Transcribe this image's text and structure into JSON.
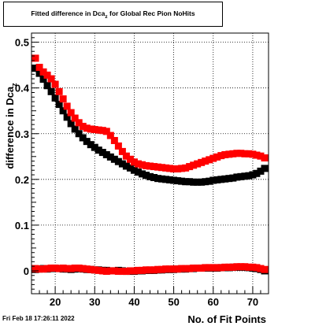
{
  "title": {
    "main": "Fitted difference in Dca",
    "sub": "z",
    "rest": " for Global Rec Pion NoHits"
  },
  "timestamp": "Fri Feb 18 17:26:11 2022",
  "chart_data": {
    "type": "scatter",
    "xlabel": "No. of Fit Points",
    "ylabel_main": "difference in Dca",
    "ylabel_sub": "z",
    "xlim": [
      14,
      74
    ],
    "ylim": [
      -0.05,
      0.52
    ],
    "grid": true,
    "x_ticks": [
      20,
      30,
      40,
      50,
      60,
      70
    ],
    "y_ticks": [
      0,
      0.1,
      0.2,
      0.3,
      0.4,
      0.5
    ],
    "x_tick_labels": [
      "20",
      "30",
      "40",
      "50",
      "60",
      "70"
    ],
    "y_tick_labels": [
      "0",
      "0.1",
      "0.2",
      "0.3",
      "0.4",
      "0.5"
    ],
    "x": [
      15,
      16,
      17,
      18,
      19,
      20,
      21,
      22,
      23,
      24,
      25,
      26,
      27,
      28,
      29,
      30,
      31,
      32,
      33,
      34,
      35,
      36,
      37,
      38,
      39,
      40,
      41,
      42,
      43,
      44,
      45,
      46,
      47,
      48,
      49,
      50,
      51,
      52,
      53,
      54,
      55,
      56,
      57,
      58,
      59,
      60,
      61,
      62,
      63,
      64,
      65,
      66,
      67,
      68,
      69,
      70,
      71,
      72,
      73
    ],
    "series": [
      {
        "color": "#000000",
        "values": [
          0.443,
          0.432,
          0.419,
          0.405,
          0.392,
          0.378,
          0.364,
          0.35,
          0.336,
          0.322,
          0.31,
          0.3,
          0.291,
          0.283,
          0.276,
          0.27,
          0.264,
          0.259,
          0.254,
          0.249,
          0.244,
          0.239,
          0.234,
          0.229,
          0.225,
          0.22,
          0.216,
          0.212,
          0.209,
          0.206,
          0.204,
          0.202,
          0.201,
          0.2,
          0.199,
          0.198,
          0.197,
          0.196,
          0.195,
          0.195,
          0.194,
          0.194,
          0.194,
          0.195,
          0.196,
          0.198,
          0.199,
          0.2,
          0.201,
          0.202,
          0.203,
          0.205,
          0.206,
          0.207,
          0.208,
          0.21,
          0.213,
          0.218,
          0.224
        ]
      },
      {
        "color": "#ff0000",
        "values": [
          0.465,
          0.445,
          0.435,
          0.428,
          0.42,
          0.408,
          0.392,
          0.376,
          0.36,
          0.346,
          0.334,
          0.324,
          0.316,
          0.312,
          0.31,
          0.309,
          0.308,
          0.307,
          0.305,
          0.296,
          0.285,
          0.273,
          0.261,
          0.251,
          0.244,
          0.238,
          0.234,
          0.232,
          0.23,
          0.229,
          0.228,
          0.227,
          0.226,
          0.225,
          0.224,
          0.223,
          0.223,
          0.224,
          0.225,
          0.228,
          0.231,
          0.234,
          0.237,
          0.24,
          0.243,
          0.246,
          0.249,
          0.252,
          0.254,
          0.255,
          0.256,
          0.257,
          0.257,
          0.256,
          0.256,
          0.255,
          0.253,
          0.251,
          0.247
        ]
      },
      {
        "color": "#000000",
        "values": [
          0.003,
          0.004,
          0.005,
          0.004,
          0.005,
          0.006,
          0.005,
          0.004,
          0.004,
          0.003,
          0.004,
          0.005,
          0.004,
          0.003,
          0.003,
          0.002,
          0.002,
          0.001,
          0.001,
          0.0,
          0.0,
          0.001,
          0.0,
          -0.001,
          -0.001,
          -0.001,
          0.0,
          0.0,
          0.001,
          0.001,
          0.001,
          0.002,
          0.002,
          0.003,
          0.003,
          0.003,
          0.004,
          0.004,
          0.004,
          0.005,
          0.005,
          0.006,
          0.006,
          0.006,
          0.006,
          0.006,
          0.006,
          0.007,
          0.007,
          0.007,
          0.008,
          0.008,
          0.008,
          0.008,
          0.007,
          0.006,
          0.005,
          0.003,
          0.0
        ]
      },
      {
        "color": "#ff0000",
        "values": [
          0.005,
          0.004,
          0.004,
          0.005,
          0.006,
          0.006,
          0.005,
          0.006,
          0.005,
          0.005,
          0.006,
          0.006,
          0.005,
          0.004,
          0.003,
          0.002,
          0.001,
          0.0,
          -0.001,
          0.0,
          0.0,
          -0.001,
          -0.001,
          -0.001,
          0.0,
          0.0,
          0.001,
          0.001,
          0.002,
          0.002,
          0.002,
          0.003,
          0.003,
          0.004,
          0.004,
          0.004,
          0.004,
          0.005,
          0.005,
          0.005,
          0.006,
          0.006,
          0.006,
          0.007,
          0.007,
          0.007,
          0.007,
          0.007,
          0.008,
          0.008,
          0.008,
          0.009,
          0.009,
          0.009,
          0.008,
          0.008,
          0.007,
          0.005,
          0.003
        ]
      }
    ]
  }
}
